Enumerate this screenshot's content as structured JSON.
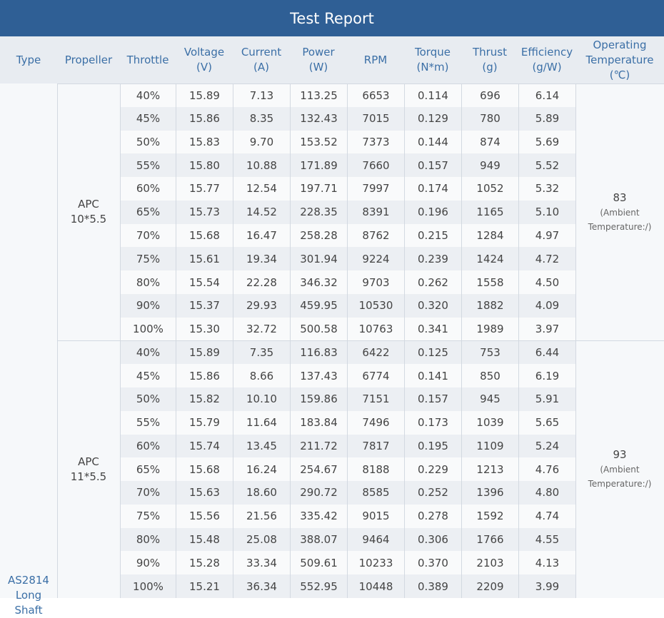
{
  "header": {
    "title": "Test Report"
  },
  "table": {
    "columns": [
      [
        "Type"
      ],
      [
        "Propeller"
      ],
      [
        "Throttle"
      ],
      [
        "Voltage",
        "(V)"
      ],
      [
        "Current",
        "(A)"
      ],
      [
        "Power",
        "(W)"
      ],
      [
        "RPM"
      ],
      [
        "Torque",
        "(N*m)"
      ],
      [
        "Thrust",
        "(g)"
      ],
      [
        "Efficiency",
        "(g/W)"
      ],
      [
        "Operating",
        "Temperature",
        "(℃)"
      ]
    ],
    "type": [
      "AS2814",
      "Long Shaft"
    ],
    "groups": [
      {
        "propeller": [
          "APC",
          "10*5.5"
        ],
        "temperature": "83",
        "temperature_note": [
          "(Ambient",
          "Temperature:/)"
        ],
        "rows": [
          [
            "40%",
            "15.89",
            "7.13",
            "113.25",
            "6653",
            "0.114",
            "696",
            "6.14"
          ],
          [
            "45%",
            "15.86",
            "8.35",
            "132.43",
            "7015",
            "0.129",
            "780",
            "5.89"
          ],
          [
            "50%",
            "15.83",
            "9.70",
            "153.52",
            "7373",
            "0.144",
            "874",
            "5.69"
          ],
          [
            "55%",
            "15.80",
            "10.88",
            "171.89",
            "7660",
            "0.157",
            "949",
            "5.52"
          ],
          [
            "60%",
            "15.77",
            "12.54",
            "197.71",
            "7997",
            "0.174",
            "1052",
            "5.32"
          ],
          [
            "65%",
            "15.73",
            "14.52",
            "228.35",
            "8391",
            "0.196",
            "1165",
            "5.10"
          ],
          [
            "70%",
            "15.68",
            "16.47",
            "258.28",
            "8762",
            "0.215",
            "1284",
            "4.97"
          ],
          [
            "75%",
            "15.61",
            "19.34",
            "301.94",
            "9224",
            "0.239",
            "1424",
            "4.72"
          ],
          [
            "80%",
            "15.54",
            "22.28",
            "346.32",
            "9703",
            "0.262",
            "1558",
            "4.50"
          ],
          [
            "90%",
            "15.37",
            "29.93",
            "459.95",
            "10530",
            "0.320",
            "1882",
            "4.09"
          ],
          [
            "100%",
            "15.30",
            "32.72",
            "500.58",
            "10763",
            "0.341",
            "1989",
            "3.97"
          ]
        ]
      },
      {
        "propeller": [
          "APC",
          "11*5.5"
        ],
        "temperature": "93",
        "temperature_note": [
          "(Ambient",
          "Temperature:/)"
        ],
        "rows": [
          [
            "40%",
            "15.89",
            "7.35",
            "116.83",
            "6422",
            "0.125",
            "753",
            "6.44"
          ],
          [
            "45%",
            "15.86",
            "8.66",
            "137.43",
            "6774",
            "0.141",
            "850",
            "6.19"
          ],
          [
            "50%",
            "15.82",
            "10.10",
            "159.86",
            "7151",
            "0.157",
            "945",
            "5.91"
          ],
          [
            "55%",
            "15.79",
            "11.64",
            "183.84",
            "7496",
            "0.173",
            "1039",
            "5.65"
          ],
          [
            "60%",
            "15.74",
            "13.45",
            "211.72",
            "7817",
            "0.195",
            "1109",
            "5.24"
          ],
          [
            "65%",
            "15.68",
            "16.24",
            "254.67",
            "8188",
            "0.229",
            "1213",
            "4.76"
          ],
          [
            "70%",
            "15.63",
            "18.60",
            "290.72",
            "8585",
            "0.252",
            "1396",
            "4.80"
          ],
          [
            "75%",
            "15.56",
            "21.56",
            "335.42",
            "9015",
            "0.278",
            "1592",
            "4.74"
          ],
          [
            "80%",
            "15.48",
            "25.08",
            "388.07",
            "9464",
            "0.306",
            "1766",
            "4.55"
          ],
          [
            "90%",
            "15.28",
            "33.34",
            "509.61",
            "10233",
            "0.370",
            "2103",
            "4.13"
          ],
          [
            "100%",
            "15.21",
            "36.34",
            "552.95",
            "10448",
            "0.389",
            "2209",
            "3.99"
          ]
        ]
      }
    ]
  }
}
